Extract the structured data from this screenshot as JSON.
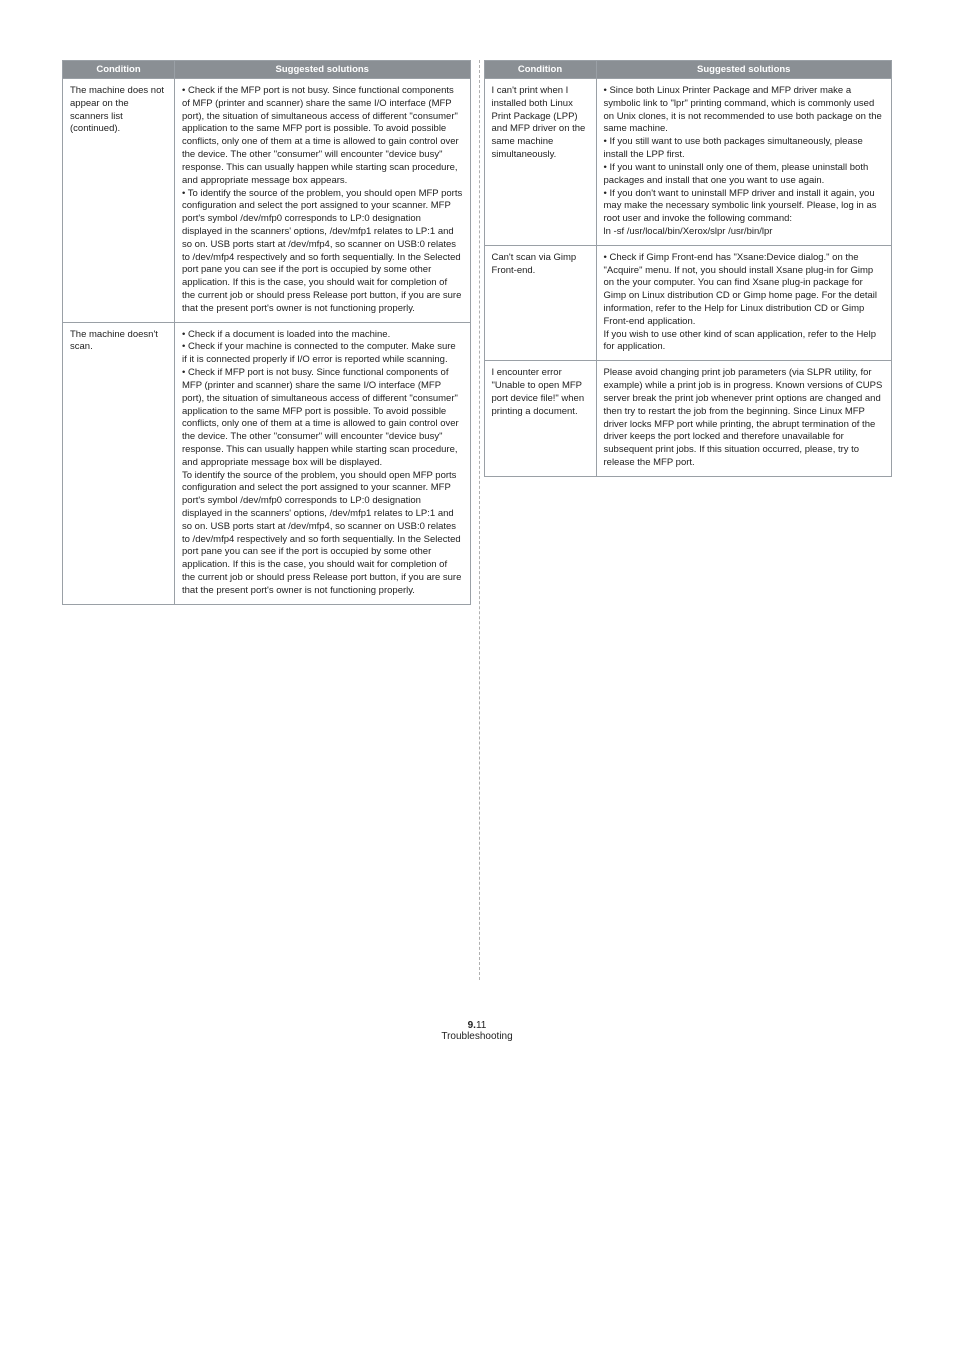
{
  "headers": {
    "condition": "Condition",
    "suggested": "Suggested solutions"
  },
  "left_table": {
    "rows": [
      {
        "condition": "The machine does not appear on the scanners list (continued).",
        "solution": "• Check if the MFP port is not busy. Since functional components of MFP (printer and scanner) share the same I/O interface (MFP port), the situation of simultaneous access of different \"consumer\" application to the same MFP port is possible. To avoid possible conflicts, only one of them at a time is allowed to gain control over the device. The other \"consumer\" will encounter \"device busy\" response. This can usually happen while starting scan procedure, and appropriate message box appears.\n• To identify the source of the problem, you should open MFP ports configuration and select the port assigned to your scanner. MFP port's symbol /dev/mfp0 corresponds to LP:0 designation displayed in the scanners' options, /dev/mfp1 relates to LP:1 and so on. USB ports start at /dev/mfp4, so scanner on USB:0 relates to /dev/mfp4 respectively and so forth sequentially. In the Selected port pane you can see if the port is occupied by some other application. If this is the case, you should wait for completion of the current job or should press Release port button, if you are sure that the present port's owner is not functioning properly."
      },
      {
        "condition": "The machine doesn't scan.",
        "solution": "• Check if a document is loaded into the machine.\n• Check if your machine is connected to the computer. Make sure if it is connected properly if I/O error is reported while scanning.\n• Check if MFP port is not busy. Since functional components of MFP (printer and scanner) share the same I/O interface (MFP port), the situation of simultaneous access of different \"consumer\" application to the same MFP port is possible. To avoid possible conflicts, only one of them at a time is allowed to gain control over the device. The other \"consumer\" will encounter \"device busy\" response. This can usually happen while starting scan procedure, and appropriate message box will be displayed.\nTo identify the source of the problem, you should open MFP ports configuration and select the port assigned to your scanner. MFP port's symbol /dev/mfp0 corresponds to LP:0 designation displayed in the scanners' options, /dev/mfp1 relates to LP:1 and so on. USB ports start at /dev/mfp4, so scanner on USB:0 relates to /dev/mfp4 respectively and so forth sequentially. In the Selected port pane you can see if the port is occupied by some other application. If this is the case, you should wait for completion of the current job or should press Release port button, if you are sure that the present port's owner is not functioning properly."
      }
    ]
  },
  "right_table": {
    "rows": [
      {
        "condition": "I can't print when I installed both Linux Print Package (LPP) and MFP driver on the same machine simultaneously.",
        "solution": "• Since both Linux Printer Package and MFP driver make a symbolic link to \"lpr\" printing command, which is commonly used on Unix clones, it is not recommended to use both package on the same machine.\n• If you still want to use both packages simultaneously, please install the LPP first.\n• If you want to uninstall only one of them, please uninstall both packages and install that one you want to use again.\n• If you don't want to uninstall MFP driver and install it again, you may make the necessary symbolic link yourself. Please, log in as root user and invoke the following command:\nln -sf /usr/local/bin/Xerox/slpr /usr/bin/lpr"
      },
      {
        "condition": "Can't scan via Gimp Front-end.",
        "solution": "• Check if Gimp Front-end has \"Xsane:Device dialog.\" on the \"Acquire\" menu. If not, you should install Xsane plug-in for Gimp on the your computer. You can find Xsane plug-in package for Gimp on Linux distribution CD or Gimp home page. For the detail information, refer to the Help for Linux distribution CD or Gimp Front-end application.\nIf you wish to use other kind of scan application, refer to the Help for application."
      },
      {
        "condition": "I encounter error \"Unable to open MFP port device file!\" when printing a document.",
        "solution": "Please avoid changing print job parameters (via SLPR utility, for example) while a print job is in progress. Known versions of CUPS server break the print job whenever print options are changed and then try to restart the job from the beginning. Since Linux MFP driver locks MFP port while printing, the abrupt termination of the driver keeps the port locked and therefore unavailable for subsequent print jobs. If this situation occurred, please, try to release the MFP port."
      }
    ]
  },
  "footer": {
    "page_number": "9.",
    "page_sub": "11",
    "section": "Troubleshooting"
  }
}
